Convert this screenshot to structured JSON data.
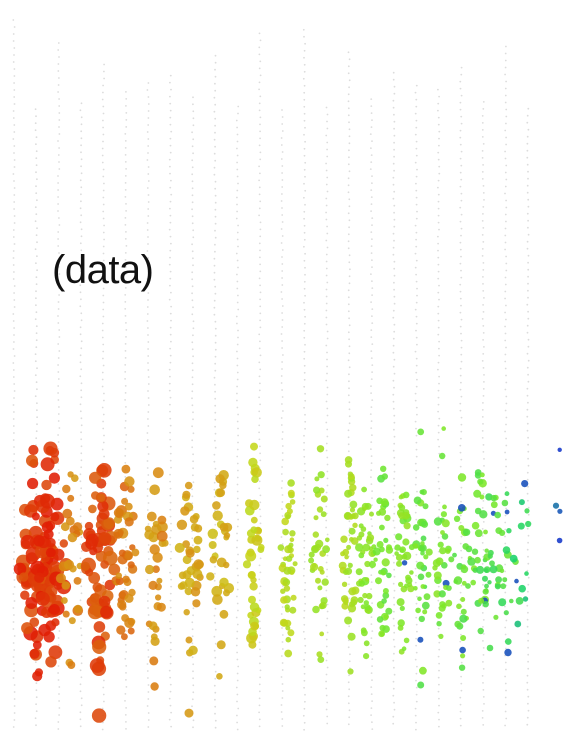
{
  "panel_label": "(data)",
  "chart_data": {
    "type": "scatter",
    "title": "",
    "xlabel": "",
    "ylabel": "",
    "grid": false,
    "legend": "none",
    "color_scale": {
      "high": "#e01e05",
      "mid_high": "#d98a12",
      "mid": "#c8d61a",
      "mid_low": "#7ae82a",
      "low": "#19d36a",
      "lowest": "#1538c9"
    },
    "background_columns": 24,
    "point_groups": [
      {
        "group": 1,
        "color_value": 0.96,
        "count": 70
      },
      {
        "group": 2,
        "color_value": 0.97,
        "count": 55
      },
      {
        "group": 3,
        "color_value": 0.8,
        "count": 26
      },
      {
        "group": 4,
        "color_value": 0.92,
        "count": 68
      },
      {
        "group": 5,
        "color_value": 0.82,
        "count": 44
      },
      {
        "group": 6,
        "color_value": 0.78,
        "count": 30
      },
      {
        "group": 7,
        "color_value": 0.72,
        "count": 38
      },
      {
        "group": 8,
        "color_value": 0.68,
        "count": 30
      },
      {
        "group": 9,
        "color_value": 0.56,
        "count": 38
      },
      {
        "group": 10,
        "color_value": 0.48,
        "count": 44
      },
      {
        "group": 11,
        "color_value": 0.42,
        "count": 36
      },
      {
        "group": 12,
        "color_value": 0.44,
        "count": 44
      },
      {
        "group": 13,
        "color_value": 0.36,
        "count": 42
      },
      {
        "group": 14,
        "color_value": 0.3,
        "count": 36
      },
      {
        "group": 15,
        "color_value": 0.34,
        "count": 40
      },
      {
        "group": 16,
        "color_value": 0.28,
        "count": 36
      },
      {
        "group": 17,
        "color_value": 0.3,
        "count": 32
      },
      {
        "group": 18,
        "color_value": 0.28,
        "count": 30
      },
      {
        "group": 19,
        "color_value": 0.26,
        "count": 26
      },
      {
        "group": 20,
        "color_value": 0.24,
        "count": 26
      },
      {
        "group": 21,
        "color_value": 0.22,
        "count": 16
      },
      {
        "group": 22,
        "color_value": 0.18,
        "count": 12
      },
      {
        "group": 23,
        "color_value": 0.0,
        "count": 4
      }
    ]
  }
}
